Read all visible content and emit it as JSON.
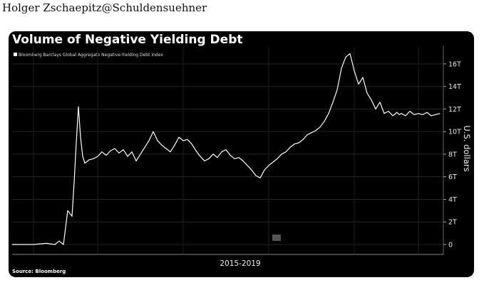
{
  "post": {
    "author": "Holger Zschaepitz@Schuldensuehner"
  },
  "chart_data": {
    "type": "line",
    "title": "Volume of Negative Yielding Debt",
    "legend": "Bloomberg Barclays Global Aggregate Negative-Yielding Debt Index",
    "source": "Source: Bloomberg",
    "xlabel": "2015-2019",
    "ylabel": "U.S. dollars",
    "y_tick_labels": [
      "0",
      "2T",
      "4T",
      "6T",
      "8T",
      "10T",
      "12T",
      "14T",
      "16T"
    ],
    "ylim": [
      0,
      17.5
    ],
    "xlim": [
      0,
      1
    ],
    "colors": {
      "background": "#000000",
      "line": "#ffffff",
      "text": "#ffffff"
    },
    "series": [
      {
        "x": [
          0,
          0.05,
          0.08,
          0.1,
          0.11,
          0.12,
          0.125,
          0.13,
          0.14,
          0.145,
          0.15,
          0.155,
          0.16,
          0.165,
          0.17,
          0.18,
          0.19,
          0.2,
          0.21,
          0.22,
          0.23,
          0.24,
          0.25,
          0.26,
          0.27,
          0.28,
          0.29,
          0.3,
          0.31,
          0.32,
          0.33,
          0.34,
          0.35,
          0.36,
          0.37,
          0.38,
          0.39,
          0.4,
          0.41,
          0.42,
          0.43,
          0.44,
          0.45,
          0.46,
          0.47,
          0.48,
          0.49,
          0.5,
          0.51,
          0.52,
          0.53,
          0.54,
          0.55,
          0.56,
          0.57,
          0.58,
          0.59,
          0.6,
          0.61,
          0.62,
          0.63,
          0.64,
          0.65,
          0.66,
          0.67,
          0.68,
          0.69,
          0.7,
          0.71,
          0.72,
          0.73,
          0.74,
          0.75,
          0.76,
          0.77,
          0.78,
          0.79,
          0.8,
          0.81,
          0.82,
          0.83,
          0.84,
          0.85,
          0.86,
          0.87,
          0.88,
          0.89,
          0.9,
          0.905,
          0.91,
          0.92,
          0.93,
          0.94,
          0.95,
          0.96,
          0.97,
          0.98,
          0.99,
          1.0
        ],
        "values": [
          0,
          0,
          0.1,
          0,
          0.3,
          0,
          1.5,
          3.0,
          2.5,
          5.5,
          9.0,
          12.2,
          9.5,
          7.8,
          7.2,
          7.5,
          7.6,
          7.8,
          8.2,
          7.9,
          8.3,
          8.5,
          8.1,
          8.4,
          7.8,
          8.2,
          7.4,
          8.0,
          8.6,
          9.2,
          10.0,
          9.2,
          8.8,
          8.5,
          8.2,
          8.8,
          9.5,
          9.2,
          9.3,
          8.9,
          8.3,
          7.8,
          7.4,
          7.6,
          8.0,
          7.7,
          8.2,
          8.4,
          7.9,
          7.6,
          7.7,
          7.4,
          7.0,
          6.6,
          6.1,
          5.9,
          6.6,
          7.0,
          7.3,
          7.6,
          8.0,
          8.2,
          8.6,
          8.9,
          9.0,
          9.3,
          9.7,
          9.9,
          10.1,
          10.4,
          10.9,
          11.6,
          12.6,
          13.7,
          15.6,
          16.6,
          16.9,
          15.4,
          14.2,
          14.8,
          13.4,
          12.8,
          12.0,
          12.6,
          11.6,
          11.8,
          11.4,
          11.7,
          11.5,
          11.6,
          11.4,
          11.8,
          11.5,
          11.6,
          11.5,
          11.7,
          11.4,
          11.5,
          11.6
        ]
      }
    ]
  }
}
